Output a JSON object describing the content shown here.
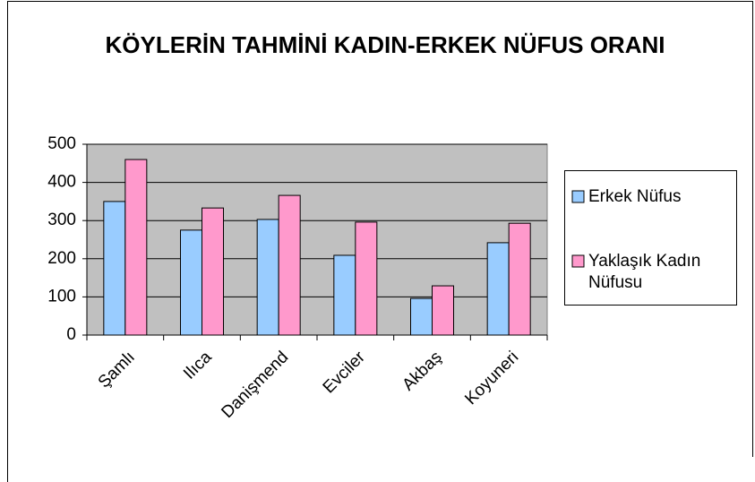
{
  "chart_data": {
    "type": "bar",
    "title": "KÖYLERİN TAHMİNİ KADIN-ERKEK NÜFUS ORANI",
    "categories": [
      "Şamlı",
      "Ilıca",
      "Danişmend",
      "Evciler",
      "Akbaş",
      "Koyuneri"
    ],
    "series": [
      {
        "name": "Erkek Nüfus",
        "color": "#99ccff",
        "values": [
          350,
          275,
          303,
          209,
          96,
          242
        ]
      },
      {
        "name": "Yaklaşık Kadın Nüfusu",
        "color": "#ff99cc",
        "values": [
          460,
          333,
          366,
          296,
          129,
          293
        ]
      }
    ],
    "ylim": [
      0,
      500
    ],
    "yticks": [
      0,
      100,
      200,
      300,
      400,
      500
    ],
    "grid": true,
    "legend": "right"
  }
}
